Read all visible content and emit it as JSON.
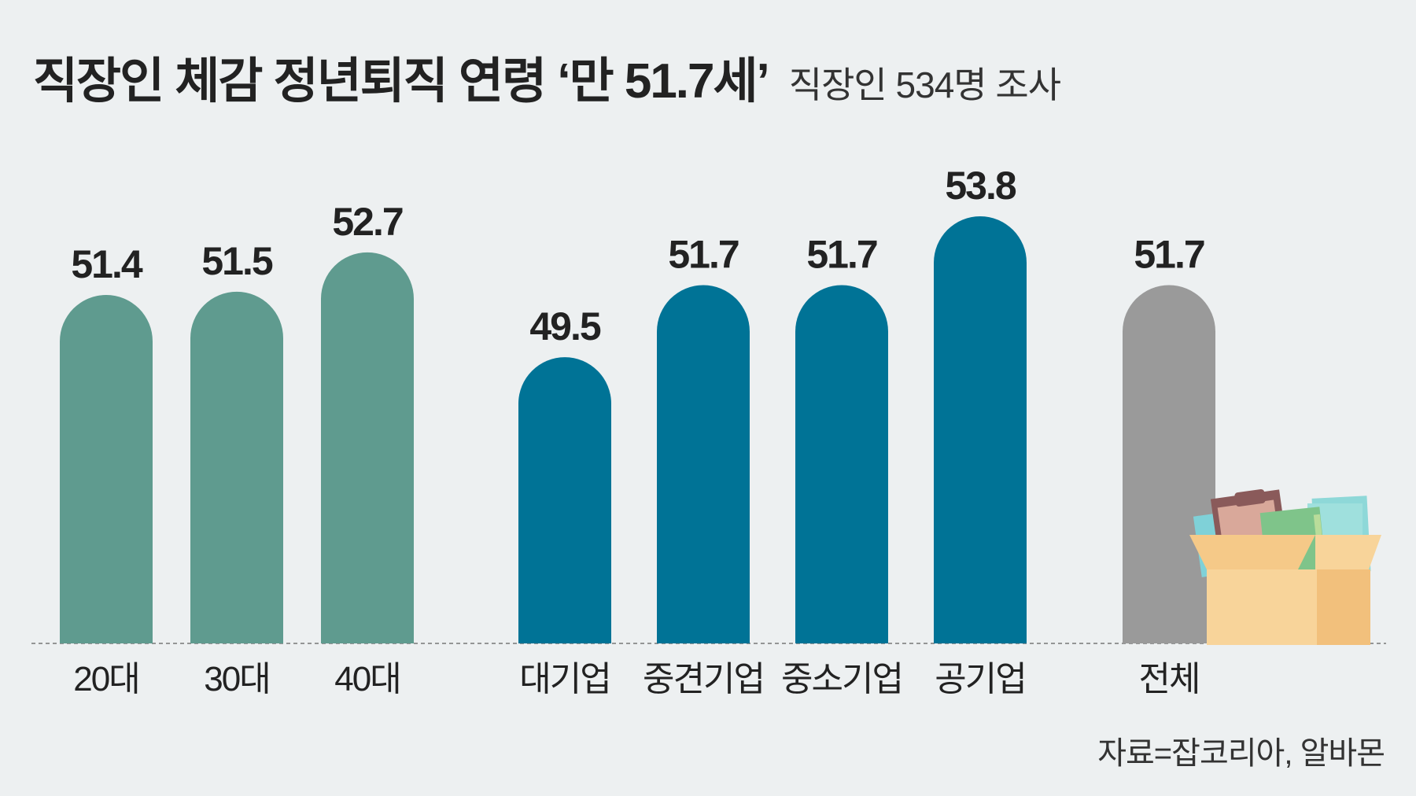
{
  "title": "직장인 체감 정년퇴직 연령 ‘만 51.7세’",
  "subtitle": "직장인 534명 조사",
  "source": "자료=잡코리아, 알바몬",
  "chart_data": {
    "type": "bar",
    "title": "직장인 체감 정년퇴직 연령 ‘만 51.7세’",
    "subtitle": "직장인 534명 조사",
    "categories": [
      "20대",
      "30대",
      "40대",
      "대기업",
      "중견기업",
      "중소기업",
      "공기업",
      "전체"
    ],
    "values": [
      51.4,
      51.5,
      52.7,
      49.5,
      51.7,
      51.7,
      53.8,
      51.7
    ],
    "value_labels": [
      "51.4",
      "51.5",
      "52.7",
      "49.5",
      "51.7",
      "51.7",
      "53.8",
      "51.7"
    ],
    "groups": [
      {
        "name": "age",
        "indices": [
          0,
          1,
          2
        ],
        "color": "#5f9b8f"
      },
      {
        "name": "company",
        "indices": [
          3,
          4,
          5,
          6
        ],
        "color": "#007396"
      },
      {
        "name": "total",
        "indices": [
          7
        ],
        "color": "#9a9a9a"
      }
    ],
    "xlabel": "",
    "ylabel": "",
    "grid": false,
    "legend": "none",
    "baseline_style": "dashed"
  },
  "illustration": {
    "name": "moving-box-icon",
    "colors": [
      "#f5c988",
      "#f8d49a",
      "#e8b573",
      "#8a5a5a",
      "#d9a89a",
      "#7fc48a",
      "#8ed8d8"
    ]
  }
}
